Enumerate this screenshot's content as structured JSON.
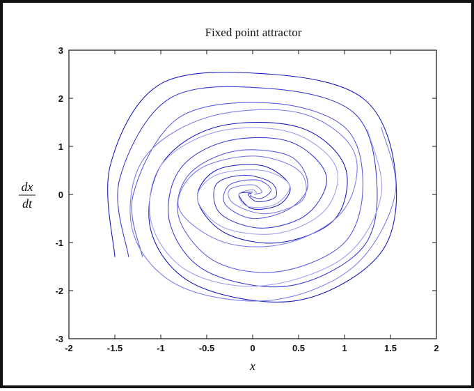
{
  "chart_data": {
    "type": "line",
    "title": "Fixed point attractor",
    "xlabel": "x",
    "ylabel": {
      "numerator": "dx",
      "denominator": "dt"
    },
    "xlim": [
      -2,
      2
    ],
    "ylim": [
      -3,
      3
    ],
    "xticks": [
      "-2",
      "-1.5",
      "-1",
      "-0.5",
      "0",
      "0.5",
      "1",
      "1.5",
      "2"
    ],
    "yticks": [
      "-3",
      "-2",
      "-1",
      "0",
      "1",
      "2",
      "3"
    ],
    "grid": false,
    "legend": "none",
    "line_colors": [
      "#1a1ab4",
      "#3c3ccf",
      "#5b5be0",
      "#7c7cec",
      "#9e9ef4"
    ],
    "attractor": [
      0,
      0
    ],
    "series": [
      {
        "values": [
          [
            -1.5,
            -1.3
          ],
          [
            -1.55,
            0.6
          ],
          [
            -1.0,
            2.3
          ],
          [
            0.2,
            2.5
          ],
          [
            1.2,
            2.0
          ],
          [
            1.55,
            0.5
          ],
          [
            1.4,
            -1.2
          ],
          [
            0.5,
            -2.2
          ],
          [
            -0.6,
            -1.9
          ],
          [
            -1.1,
            -0.8
          ],
          [
            -1.0,
            0.6
          ],
          [
            -0.4,
            1.4
          ],
          [
            0.5,
            1.4
          ],
          [
            1.0,
            0.6
          ],
          [
            0.9,
            -0.5
          ],
          [
            0.3,
            -1.0
          ],
          [
            -0.3,
            -0.8
          ],
          [
            -0.6,
            -0.1
          ],
          [
            -0.4,
            0.5
          ],
          [
            0.1,
            0.6
          ],
          [
            0.4,
            0.2
          ],
          [
            0.3,
            -0.2
          ],
          [
            0.0,
            -0.3
          ],
          [
            -0.15,
            0.0
          ],
          [
            0.0,
            0.05
          ]
        ]
      },
      {
        "values": [
          [
            -1.35,
            -1.3
          ],
          [
            -1.45,
            0.3
          ],
          [
            -0.9,
            2.0
          ],
          [
            0.2,
            2.2
          ],
          [
            1.1,
            1.7
          ],
          [
            1.35,
            0.3
          ],
          [
            1.2,
            -1.1
          ],
          [
            0.4,
            -1.9
          ],
          [
            -0.5,
            -1.6
          ],
          [
            -0.9,
            -0.6
          ],
          [
            -0.8,
            0.5
          ],
          [
            -0.3,
            1.1
          ],
          [
            0.4,
            1.1
          ],
          [
            0.8,
            0.4
          ],
          [
            0.6,
            -0.4
          ],
          [
            0.1,
            -0.7
          ],
          [
            -0.35,
            -0.4
          ],
          [
            -0.4,
            0.2
          ],
          [
            -0.1,
            0.4
          ],
          [
            0.2,
            0.25
          ],
          [
            0.25,
            -0.05
          ],
          [
            0.05,
            -0.15
          ],
          [
            -0.05,
            0.0
          ],
          [
            0.0,
            0.02
          ]
        ]
      },
      {
        "values": [
          [
            -1.2,
            -1.3
          ],
          [
            -1.3,
            0.0
          ],
          [
            -0.8,
            1.6
          ],
          [
            0.2,
            1.9
          ],
          [
            1.0,
            1.4
          ],
          [
            1.2,
            0.2
          ],
          [
            1.0,
            -1.0
          ],
          [
            0.3,
            -1.6
          ],
          [
            -0.4,
            -1.4
          ],
          [
            -0.8,
            -0.5
          ],
          [
            -0.7,
            0.4
          ],
          [
            -0.2,
            0.9
          ],
          [
            0.4,
            0.8
          ],
          [
            0.6,
            0.2
          ],
          [
            0.4,
            -0.3
          ],
          [
            0.0,
            -0.5
          ],
          [
            -0.3,
            -0.2
          ],
          [
            -0.25,
            0.2
          ],
          [
            0.05,
            0.3
          ],
          [
            0.2,
            0.1
          ],
          [
            0.1,
            -0.08
          ],
          [
            -0.02,
            -0.04
          ],
          [
            0.0,
            0.01
          ]
        ]
      },
      {
        "values": [
          [
            1.4,
            1.4
          ],
          [
            1.55,
            0.0
          ],
          [
            1.1,
            -1.5
          ],
          [
            0.2,
            -2.2
          ],
          [
            -0.8,
            -1.9
          ],
          [
            -1.3,
            -0.8
          ],
          [
            -1.2,
            0.7
          ],
          [
            -0.5,
            1.6
          ],
          [
            0.5,
            1.7
          ],
          [
            1.1,
            0.9
          ],
          [
            1.0,
            -0.3
          ],
          [
            0.4,
            -1.0
          ],
          [
            -0.3,
            -1.0
          ],
          [
            -0.8,
            -0.3
          ],
          [
            -0.6,
            0.5
          ],
          [
            0.0,
            0.8
          ],
          [
            0.5,
            0.5
          ],
          [
            0.55,
            -0.1
          ],
          [
            0.15,
            -0.4
          ],
          [
            -0.2,
            -0.2
          ],
          [
            -0.25,
            0.1
          ],
          [
            0.0,
            0.2
          ],
          [
            0.1,
            0.05
          ],
          [
            0.0,
            0.0
          ]
        ]
      },
      {
        "values": [
          [
            1.25,
            1.35
          ],
          [
            1.4,
            0.0
          ],
          [
            1.0,
            -1.3
          ],
          [
            0.1,
            -1.9
          ],
          [
            -0.7,
            -1.6
          ],
          [
            -1.1,
            -0.6
          ],
          [
            -1.0,
            0.6
          ],
          [
            -0.4,
            1.3
          ],
          [
            0.4,
            1.3
          ],
          [
            0.9,
            0.6
          ],
          [
            0.8,
            -0.3
          ],
          [
            0.3,
            -0.8
          ],
          [
            -0.3,
            -0.7
          ],
          [
            -0.6,
            -0.1
          ],
          [
            -0.4,
            0.4
          ],
          [
            0.1,
            0.5
          ],
          [
            0.4,
            0.2
          ],
          [
            0.25,
            -0.2
          ],
          [
            -0.05,
            -0.25
          ],
          [
            -0.15,
            0.0
          ],
          [
            0.0,
            0.1
          ],
          [
            0.05,
            0.0
          ]
        ]
      }
    ]
  }
}
